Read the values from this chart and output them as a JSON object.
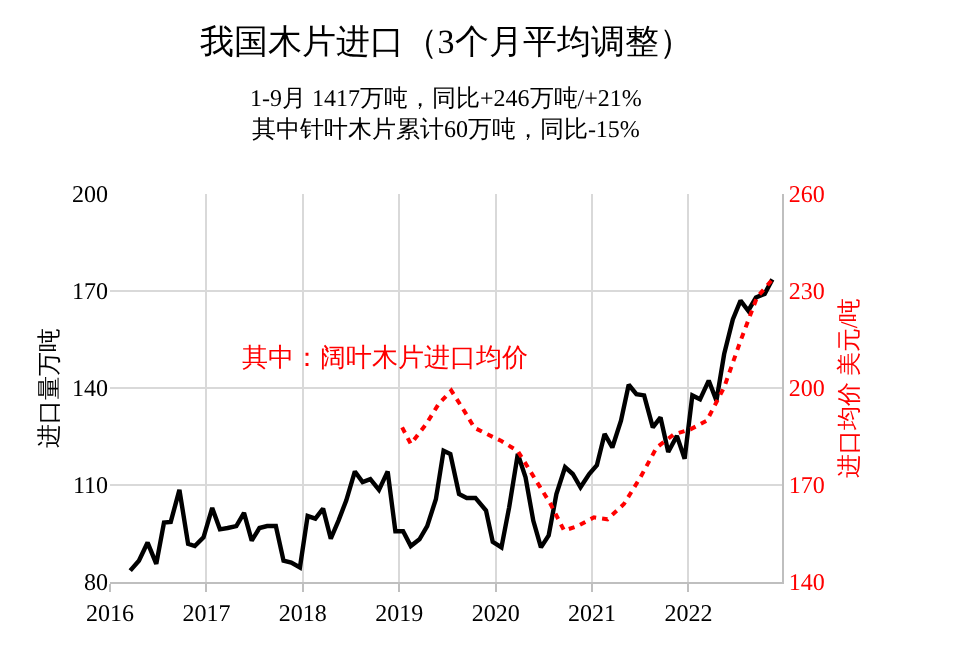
{
  "chart_data": {
    "type": "line",
    "title": "我国木片进口（3个月平均调整）",
    "subtitle": "1-9月 1417万吨，同比+246万吨/+21%\n其中针叶木片累计60万吨，同比-15%",
    "ylabel": "进口量万吨",
    "y2label": "进口均价 美元/吨",
    "annotations": [
      "其中：阔叶木片进口均价"
    ],
    "xlim": [
      2016,
      2022.97
    ],
    "xticks": [
      2016,
      2017,
      2018,
      2019,
      2020,
      2021,
      2022
    ],
    "ylim": [
      80,
      200
    ],
    "yticks": [
      80,
      110,
      140,
      170,
      200
    ],
    "y2lim": [
      140,
      260
    ],
    "y2ticks": [
      140,
      170,
      200,
      230,
      260
    ],
    "grid": true,
    "series": [
      {
        "color": "#000000",
        "line_style": "solid",
        "x": [
          2016.21,
          2016.3,
          2016.39,
          2016.48,
          2016.56,
          2016.63,
          2016.72,
          2016.81,
          2016.88,
          2016.97,
          2017.06,
          2017.14,
          2017.22,
          2017.31,
          2017.39,
          2017.47,
          2017.55,
          2017.63,
          2017.72,
          2017.8,
          2017.88,
          2017.97,
          2018.05,
          2018.13,
          2018.21,
          2018.29,
          2018.37,
          2018.45,
          2018.54,
          2018.62,
          2018.7,
          2018.79,
          2018.88,
          2018.96,
          2019.04,
          2019.12,
          2019.21,
          2019.29,
          2019.38,
          2019.46,
          2019.53,
          2019.62,
          2019.7,
          2019.79,
          2019.9,
          2019.97,
          2020.06,
          2020.14,
          2020.23,
          2020.31,
          2020.39,
          2020.47,
          2020.55,
          2020.63,
          2020.72,
          2020.8,
          2020.88,
          2020.97,
          2021.05,
          2021.13,
          2021.21,
          2021.3,
          2021.38,
          2021.46,
          2021.54,
          2021.63,
          2021.71,
          2021.79,
          2021.88,
          2021.96,
          2022.04,
          2022.12,
          2022.21,
          2022.29,
          2022.37,
          2022.46,
          2022.54,
          2022.62,
          2022.7,
          2022.79,
          2022.87
        ],
        "values": [
          83.5,
          86.6,
          92.2,
          85.6,
          98.4,
          98.6,
          108.5,
          91.8,
          91.1,
          93.8,
          102.9,
          96.3,
          96.7,
          97.3,
          101.4,
          92.8,
          96.7,
          97.3,
          97.3,
          86.6,
          86,
          84.5,
          100.4,
          99.6,
          102.7,
          93.4,
          99,
          105.2,
          114.2,
          110.9,
          111.8,
          108.5,
          114.2,
          95.7,
          95.7,
          91.1,
          93.2,
          97.3,
          105.6,
          120.6,
          119.6,
          107.2,
          106,
          106,
          102.1,
          92.4,
          90.7,
          103.1,
          119.6,
          112.4,
          99,
          90.7,
          94.4,
          107.2,
          115.5,
          113.4,
          109.3,
          113.4,
          116.1,
          125.8,
          121.6,
          129.9,
          141,
          138.1,
          137.7,
          127.8,
          130.9,
          120.2,
          125.2,
          118.1,
          137.7,
          136.5,
          142.3,
          136.1,
          150.5,
          161.2,
          167,
          163.9,
          168,
          169.1,
          173.6
        ]
      },
      {
        "color": "#ff0000",
        "axis": "y2",
        "line_style": "dotted",
        "x": [
          2019.03,
          2019.12,
          2019.28,
          2019.41,
          2019.54,
          2019.66,
          2019.78,
          2019.92,
          2020.06,
          2020.23,
          2020.4,
          2020.57,
          2020.71,
          2020.85,
          2021.02,
          2021.16,
          2021.33,
          2021.5,
          2021.67,
          2021.85,
          2022.02,
          2022.19,
          2022.37,
          2022.54,
          2022.71,
          2022.86
        ],
        "values": [
          187.8,
          182.7,
          188.9,
          195.1,
          199.2,
          193.6,
          187.7,
          185.6,
          183.6,
          180.5,
          172.3,
          164.1,
          155.9,
          157.3,
          160,
          159.4,
          164.1,
          172.3,
          181.6,
          185.7,
          187.2,
          189.9,
          200.2,
          214.6,
          228,
          233.2
        ]
      }
    ]
  }
}
